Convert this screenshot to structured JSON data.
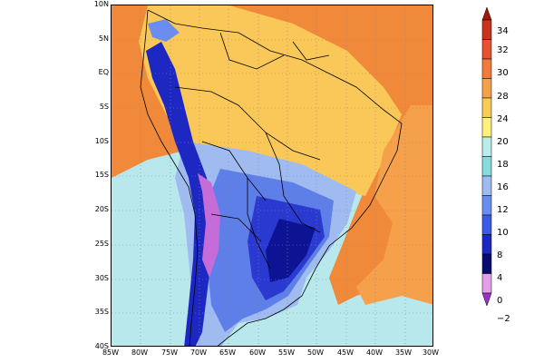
{
  "map": {
    "title": "",
    "lat_labels": [
      "10N",
      "5N",
      "EQ",
      "5S",
      "10S",
      "15S",
      "20S",
      "25S",
      "30S",
      "35S",
      "40S"
    ],
    "lon_labels": [
      "85W",
      "80W",
      "75W",
      "70W",
      "65W",
      "60W",
      "55W",
      "50W",
      "45W",
      "40W",
      "35W",
      "30W"
    ],
    "lat_range": [
      -40,
      10
    ],
    "lon_range": [
      -85,
      -30
    ]
  },
  "colorbar": {
    "levels": [
      "34",
      "32",
      "30",
      "28",
      "24",
      "20",
      "18",
      "16",
      "12",
      "10",
      "8",
      "4",
      "0",
      "−2"
    ],
    "colors": [
      "#a41a0a",
      "#c8331b",
      "#e8522e",
      "#f27a3a",
      "#f5a04a",
      "#f9cc55",
      "#fff17a",
      "#b9ecea",
      "#86dcdc",
      "#9fbbf0",
      "#6a8ef0",
      "#3c5ae6",
      "#1d28c2",
      "#070c70",
      "#e3a0e6",
      "#9e2fc4"
    ],
    "regions": {
      "ocean_north": "#f08a3a",
      "land_tropics": "#f9c858",
      "ocean_south": "#b8e8ec"
    }
  }
}
